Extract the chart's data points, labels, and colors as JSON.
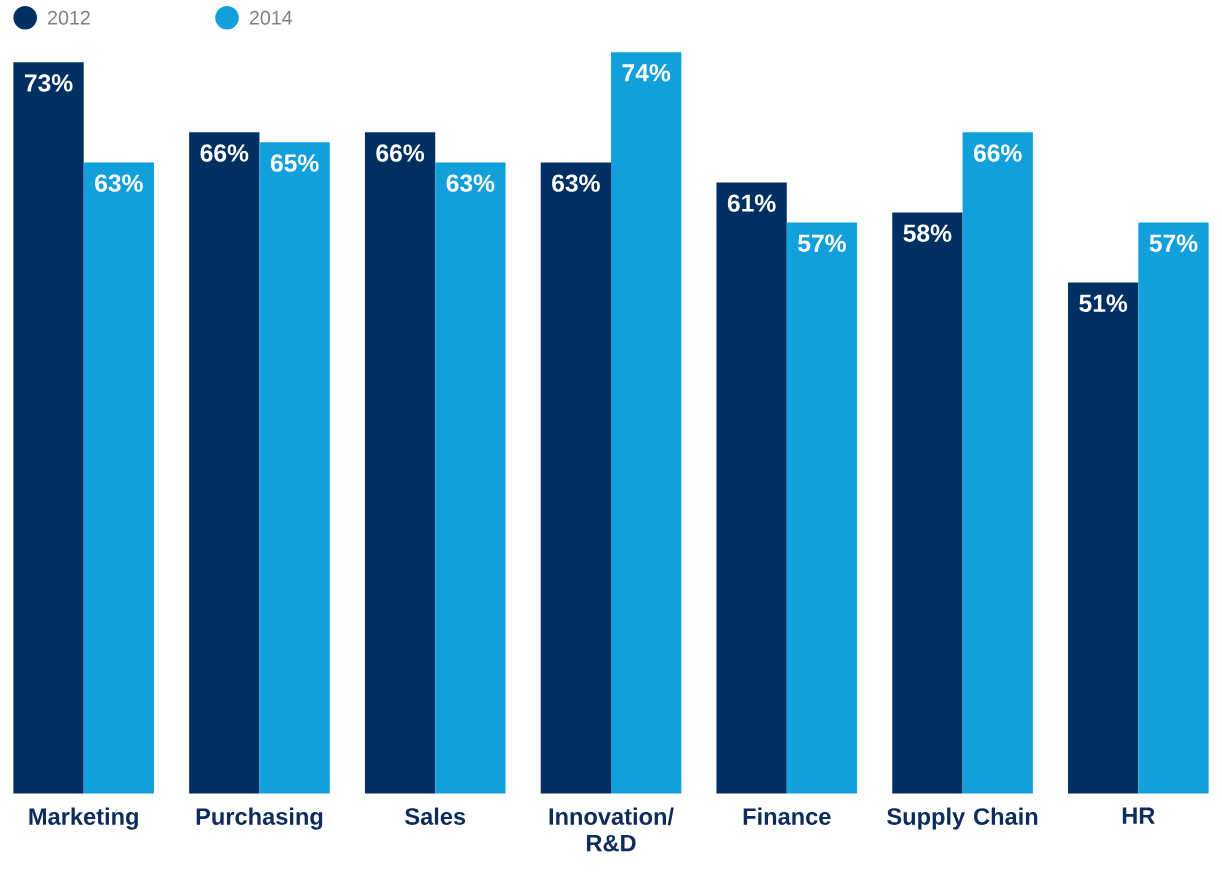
{
  "chart_data": {
    "type": "bar",
    "categories": [
      "Marketing",
      "Purchasing",
      "Sales",
      "Innovation/ R&D",
      "Finance",
      "Supply Chain",
      "HR"
    ],
    "series": [
      {
        "name": "2012",
        "color": "#003063",
        "values": [
          73,
          66,
          66,
          63,
          61,
          58,
          51
        ],
        "value_labels": [
          "73%",
          "66%",
          "66%",
          "63%",
          "61%",
          "58%",
          "51%"
        ]
      },
      {
        "name": "2014",
        "color": "#12a0dc",
        "values": [
          63,
          65,
          63,
          74,
          57,
          66,
          57
        ],
        "value_labels": [
          "63%",
          "65%",
          "63%",
          "74%",
          "57%",
          "66%",
          "57%"
        ]
      }
    ],
    "legend": "top left"
  }
}
